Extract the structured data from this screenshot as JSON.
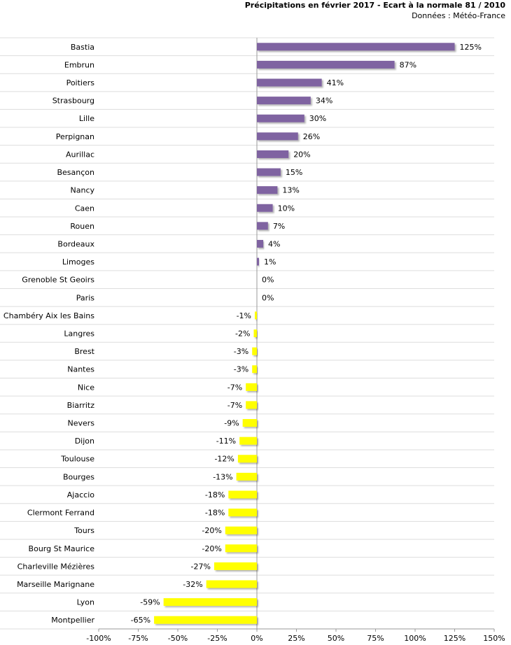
{
  "chart_data": {
    "type": "bar",
    "orientation": "horizontal",
    "title": "Précipitations en février 2017 - Ecart à la normale 81 / 2010",
    "subtitle": "Données : Météo-France",
    "xlabel": "",
    "ylabel": "",
    "xlim": [
      -100,
      150
    ],
    "x_ticks": [
      -100,
      -75,
      -50,
      -25,
      0,
      25,
      50,
      75,
      100,
      125,
      150
    ],
    "value_suffix": "%",
    "positive_color": "#7f63a1",
    "negative_color": "#ffff00",
    "categories": [
      "Bastia",
      "Embrun",
      "Poitiers",
      "Strasbourg",
      "Lille",
      "Perpignan",
      "Aurillac",
      "Besançon",
      "Nancy",
      "Caen",
      "Rouen",
      "Bordeaux",
      "Limoges",
      "Grenoble St Geoirs",
      "Paris",
      "Chambéry Aix les Bains",
      "Langres",
      "Brest",
      "Nantes",
      "Nice",
      "Biarritz",
      "Nevers",
      "Dijon",
      "Toulouse",
      "Bourges",
      "Ajaccio",
      "Clermont Ferrand",
      "Tours",
      "Bourg St Maurice",
      "Charleville Mézières",
      "Marseille Marignane",
      "Lyon",
      "Montpellier"
    ],
    "values": [
      125,
      87,
      41,
      34,
      30,
      26,
      20,
      15,
      13,
      10,
      7,
      4,
      1,
      0,
      0,
      -1,
      -2,
      -3,
      -3,
      -7,
      -7,
      -9,
      -11,
      -12,
      -13,
      -18,
      -18,
      -20,
      -20,
      -27,
      -32,
      -59,
      -65
    ]
  }
}
